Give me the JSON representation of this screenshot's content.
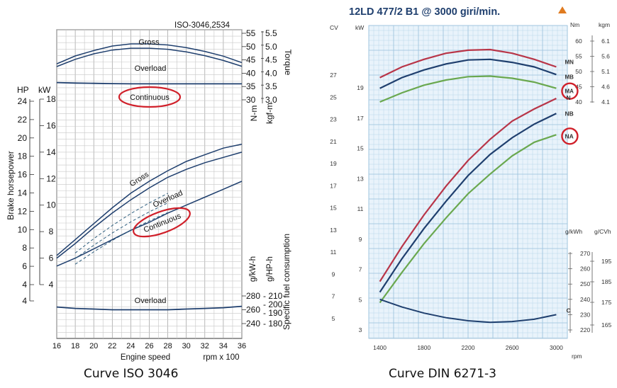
{
  "left": {
    "std_label": "ISO-3046,2534",
    "caption": "Curve ISO 3046",
    "xlabel": "Engine speed",
    "xunit": "rpm x 100",
    "x_ticks": [
      16,
      18,
      20,
      22,
      24,
      26,
      28,
      30,
      32,
      34,
      36
    ],
    "hp_label": "HP",
    "kw_label": "kW",
    "brake_label": "Brake horsepower",
    "hp_ticks": [
      4,
      6,
      8,
      10,
      12,
      14,
      16,
      18,
      20,
      22,
      24
    ],
    "kw_ticks": [
      4,
      6,
      8,
      10,
      12,
      14,
      16,
      18
    ],
    "torque_nm_ticks": [
      30,
      35,
      40,
      45,
      50,
      55
    ],
    "torque_kgfm_ticks": [
      "3.0",
      "3.5",
      "4.0",
      "4.5",
      "5.0",
      "5.5"
    ],
    "torque_label": "Torque",
    "nm_label": "N-m",
    "kgfm_label": "kgf-m",
    "sfc_gkwh_ticks": [
      240,
      260,
      280
    ],
    "sfc_ghph_ticks": [
      180,
      190,
      200,
      210
    ],
    "sfc_label": "Specific fuel consumption",
    "gkwh_label": "g/kW-h",
    "ghph_label": "g/HP-h",
    "curve_labels": {
      "torque_gross": "Gross",
      "torque_overload": "Overload",
      "torque_continuous": "Continuous",
      "power_gross": "Gross",
      "power_overload": "Overload",
      "power_continuous": "Continuous",
      "sfc_overload": "Overload"
    }
  },
  "right": {
    "title": "12LD 477/2  B1 @ 3000 giri/min.",
    "caption": "Curve DIN 6271-3",
    "cv_label": "CV",
    "kw_label": "kW",
    "nm_label": "Nm",
    "kgm_label": "kgm",
    "gkwh_label": "g/kWh",
    "gcvh_label": "g/CVh",
    "xunit": "rpm",
    "x_ticks": [
      "1400",
      "1800",
      "2200",
      "2600",
      "3000"
    ],
    "cv_ticks": [
      5,
      7,
      9,
      11,
      13,
      15,
      17,
      19,
      21,
      23,
      25,
      27
    ],
    "kw_ticks": [
      3,
      5,
      7,
      9,
      11,
      13,
      15,
      17,
      19
    ],
    "nm_ticks": [
      40,
      45,
      50,
      55,
      60
    ],
    "kgm_ticks": [
      "4.1",
      "4.6",
      "5.1",
      "5.6",
      "6.1"
    ],
    "sfc_gkwh_ticks": [
      220,
      230,
      240,
      250,
      260,
      270
    ],
    "sfc_gcvh_ticks": [
      165,
      175,
      185,
      195
    ],
    "curve_labels": {
      "torque_n": "MN",
      "torque_nb": "MB",
      "torque_na": "MA",
      "power_n": "N",
      "power_nb": "NB",
      "power_na": "NA",
      "sfc": "C"
    },
    "colors": {
      "n": "#b83548",
      "nb": "#1f3f6e",
      "na": "#6aa84f",
      "sfc": "#1f3f6e",
      "circle": "#d0202a",
      "triangle": "#e07b20"
    }
  },
  "chart_data": [
    {
      "type": "line",
      "title": "ISO-3046,2534",
      "xlabel": "Engine speed",
      "x_unit": "rpm x 100",
      "xlim": [
        16,
        36
      ],
      "x": [
        16,
        18,
        20,
        22,
        24,
        26,
        28,
        30,
        32,
        34,
        36
      ],
      "torque": {
        "unit": "N-m",
        "ylim": [
          25,
          55
        ],
        "series": [
          {
            "name": "Gross",
            "values": [
              43.5,
              46.5,
              48.5,
              50.2,
              51.0,
              51.0,
              50.6,
              49.6,
              48.2,
              46.4,
              44.0
            ]
          },
          {
            "name": "Overload",
            "values": [
              42.5,
              45.2,
              47.3,
              48.7,
              49.4,
              49.4,
              49.0,
              48.0,
              46.6,
              44.8,
              42.6
            ]
          },
          {
            "name": "Continuous",
            "values": [
              36.5,
              36.3,
              36.2,
              36.1,
              36.0,
              36.0,
              36.0,
              36.0,
              36.0,
              36.0,
              36.0
            ]
          }
        ]
      },
      "power": {
        "unit": "kW",
        "ylim": [
          2,
          18
        ],
        "series": [
          {
            "name": "Gross",
            "values": [
              6.2,
              7.4,
              8.6,
              9.8,
              10.9,
              11.8,
              12.6,
              13.3,
              13.8,
              14.3,
              14.6
            ]
          },
          {
            "name": "Overload",
            "values": [
              6.0,
              7.1,
              8.3,
              9.4,
              10.4,
              11.3,
              12.1,
              12.7,
              13.2,
              13.6,
              14.0
            ]
          },
          {
            "name": "Continuous",
            "values": [
              5.4,
              6.0,
              6.7,
              7.4,
              8.1,
              8.7,
              9.4,
              10.0,
              10.6,
              11.2,
              11.8
            ]
          }
        ]
      },
      "sfc": {
        "unit": "g/kW-h",
        "ylim": [
          230,
          290
        ],
        "series": [
          {
            "name": "Overload",
            "values": [
              264,
              262,
              261,
              260,
              260,
              260,
              260,
              261,
              262,
              263,
              265
            ]
          }
        ]
      }
    },
    {
      "type": "line",
      "title": "12LD 477/2  B1 @ 3000 giri/min.",
      "x_unit": "rpm",
      "xlim": [
        1300,
        3100
      ],
      "x": [
        1400,
        1600,
        1800,
        2000,
        2200,
        2400,
        2600,
        2800,
        3000
      ],
      "torque": {
        "unit": "Nm",
        "ylim": [
          35,
          62
        ],
        "series": [
          {
            "name": "MN",
            "values": [
              48.0,
              51.5,
              54.0,
              56.0,
              57.0,
              57.2,
              56.0,
              54.0,
              51.5
            ]
          },
          {
            "name": "MB",
            "values": [
              44.5,
              48.0,
              50.5,
              52.5,
              53.8,
              54.0,
              53.0,
              51.5,
              49.0
            ]
          },
          {
            "name": "MA",
            "values": [
              40.0,
              43.0,
              45.5,
              47.2,
              48.3,
              48.5,
              47.8,
              46.5,
              44.5
            ]
          }
        ]
      },
      "power": {
        "unit": "kW",
        "ylim": [
          2,
          21
        ],
        "series": [
          {
            "name": "N",
            "values": [
              6.2,
              8.5,
              10.6,
              12.5,
              14.2,
              15.6,
              16.8,
              17.6,
              18.3
            ]
          },
          {
            "name": "NB",
            "values": [
              5.5,
              7.7,
              9.7,
              11.5,
              13.2,
              14.6,
              15.7,
              16.6,
              17.3
            ]
          },
          {
            "name": "NA",
            "values": [
              4.8,
              6.8,
              8.7,
              10.4,
              12.0,
              13.3,
              14.5,
              15.4,
              15.9
            ]
          }
        ]
      },
      "sfc": {
        "unit": "g/kWh",
        "ylim": [
          210,
          280
        ],
        "series": [
          {
            "name": "C",
            "values": [
              240.0,
              235.0,
              231.0,
              228.0,
              226.0,
              225.0,
              225.5,
              227.0,
              230.0
            ]
          }
        ]
      }
    }
  ]
}
